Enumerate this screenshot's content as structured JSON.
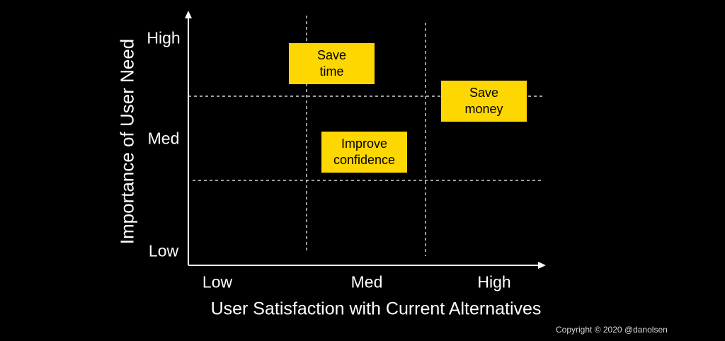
{
  "axes": {
    "y_label": "Importance of User Need",
    "x_label": "User Satisfaction with Current Alternatives",
    "y_ticks": {
      "high": "High",
      "med": "Med",
      "low": "Low"
    },
    "x_ticks": {
      "low": "Low",
      "med": "Med",
      "high": "High"
    }
  },
  "needs": {
    "save_time": {
      "line1": "Save",
      "line2": "time"
    },
    "save_money": {
      "line1": "Save",
      "line2": "money"
    },
    "improve_confidence": {
      "line1": "Improve",
      "line2": "confidence"
    }
  },
  "footer": {
    "copyright": "Copyright © 2020 @danolsen"
  },
  "colors": {
    "background": "#000000",
    "box": "#FFD700",
    "axis": "#ffffff"
  }
}
